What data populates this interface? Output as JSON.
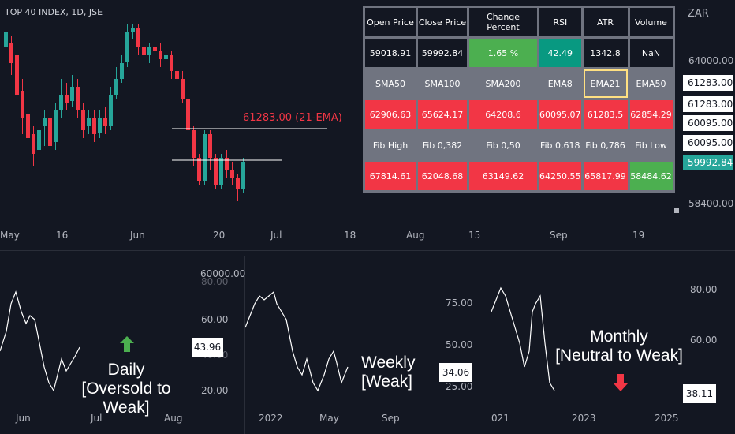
{
  "main_chart": {
    "title": "TOP 40 INDEX, 1D, JSE",
    "currency": "ZAR",
    "ema_label": "61283.00 (21-EMA)",
    "y_ticks": [
      "64000.00",
      "58400.00"
    ],
    "x_ticks": [
      "May",
      "16",
      "Jun",
      "20",
      "Jul",
      "18",
      "Aug",
      "15",
      "Sep",
      "19"
    ],
    "price_tags": [
      {
        "value": "61283.00",
        "style": "white"
      },
      {
        "value": "61283.00",
        "style": "white"
      },
      {
        "value": "60095.00",
        "style": "white"
      },
      {
        "value": "60095.00",
        "style": "white"
      },
      {
        "value": "59992.84",
        "style": "green"
      }
    ],
    "colors": {
      "up": "#26a69a",
      "down": "#f23645",
      "ema_text": "#f23645"
    }
  },
  "info_table": {
    "headers": [
      "Open Price",
      "Close Price",
      "Change Percent",
      "RSI",
      "ATR",
      "Volume"
    ],
    "values": [
      "59018.91",
      "59992.84",
      "1.65 %",
      "42.49",
      "1342.8",
      "NaN"
    ],
    "ma_labels": [
      "SMA50",
      "SMA100",
      "SMA200",
      "EMA8",
      "EMA21",
      "EMA50"
    ],
    "ma_values": [
      "62906.63",
      "65624.17",
      "64208.6",
      "60095.07",
      "61283.5",
      "62854.29"
    ],
    "fib_labels": [
      "Fib High",
      "Fib 0,382",
      "Fib 0,50",
      "Fib 0,618",
      "Fib 0,786",
      "Fib Low"
    ],
    "fib_values": [
      "67814.61",
      "62048.68",
      "63149.62",
      "64250.55",
      "65817.99",
      "58484.62"
    ]
  },
  "rsi_panels": {
    "daily": {
      "label_line1": "Daily",
      "label_line2": "[Oversold to Weak]",
      "value": "43.96",
      "y_ticks": [
        "60000.00",
        "80.00",
        "60.00",
        "40.00",
        "20.00"
      ],
      "x_ticks": [
        "Jun",
        "Jul",
        "Aug"
      ],
      "arrow": "up",
      "arrow_color": "#4caf50"
    },
    "weekly": {
      "label_line1": "Weekly",
      "label_line2": "[Weak]",
      "value": "34.06",
      "y_ticks": [
        "75.00",
        "50.00",
        "25.00"
      ],
      "x_ticks": [
        "2022",
        "May",
        "Sep"
      ]
    },
    "monthly": {
      "label_line1": "Monthly",
      "label_line2": "[Neutral to Weak]",
      "value": "38.11",
      "y_ticks": [
        "80.00",
        "60.00"
      ],
      "x_ticks": [
        "021",
        "2023",
        "2025"
      ],
      "arrow": "down",
      "arrow_color": "#f23645"
    }
  }
}
